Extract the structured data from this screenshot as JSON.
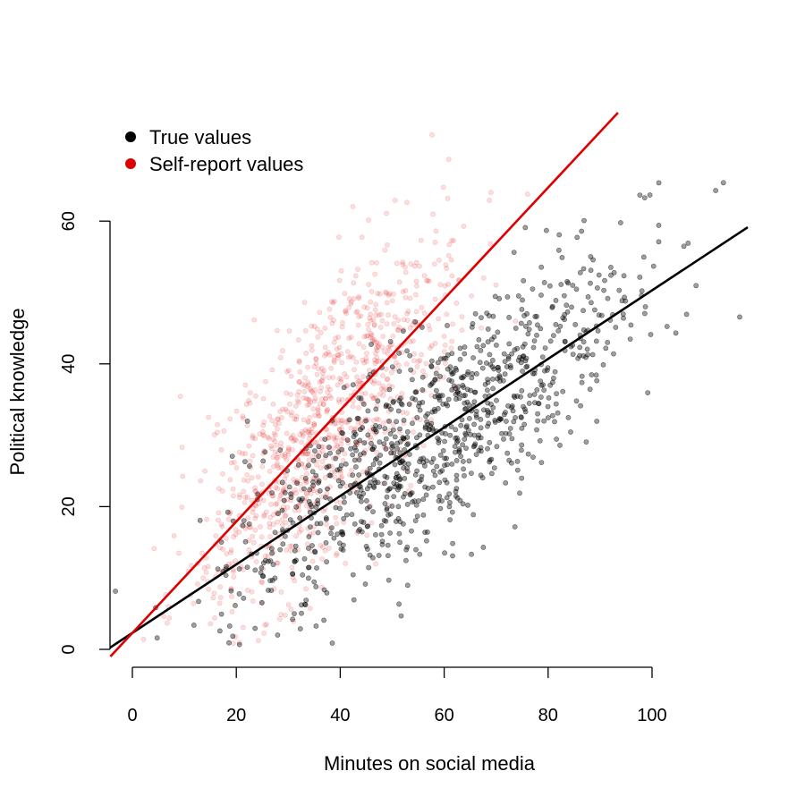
{
  "chart_data": {
    "type": "scatter",
    "xlabel": "Minutes on social media",
    "ylabel": "Political knowledge",
    "x_ticks": [
      "0",
      "20",
      "40",
      "60",
      "80",
      "100"
    ],
    "y_ticks": [
      "0",
      "20",
      "40",
      "60"
    ],
    "xlim": [
      -4.3,
      118
    ],
    "ylim": [
      -1,
      75
    ],
    "grid": false,
    "legend_position": "top-left",
    "series": [
      {
        "name": "True values",
        "color": "#000000",
        "point_opacity": 0.38,
        "n_points": 1000,
        "x_mean": 58,
        "x_sd": 20,
        "y_mean": 28.5,
        "y_sd": 12,
        "fit_line": {
          "intercept": 2.3,
          "slope": 0.48,
          "color": "#000000"
        }
      },
      {
        "name": "Self-report values",
        "color": "#dd0000",
        "point_opacity": 0.13,
        "n_points": 1000,
        "x_mean": 37,
        "x_sd": 12.5,
        "y_mean": 29,
        "y_sd": 13,
        "fit_line": {
          "intercept": 2.3,
          "slope": 0.78,
          "color": "#dd0000"
        }
      }
    ]
  }
}
